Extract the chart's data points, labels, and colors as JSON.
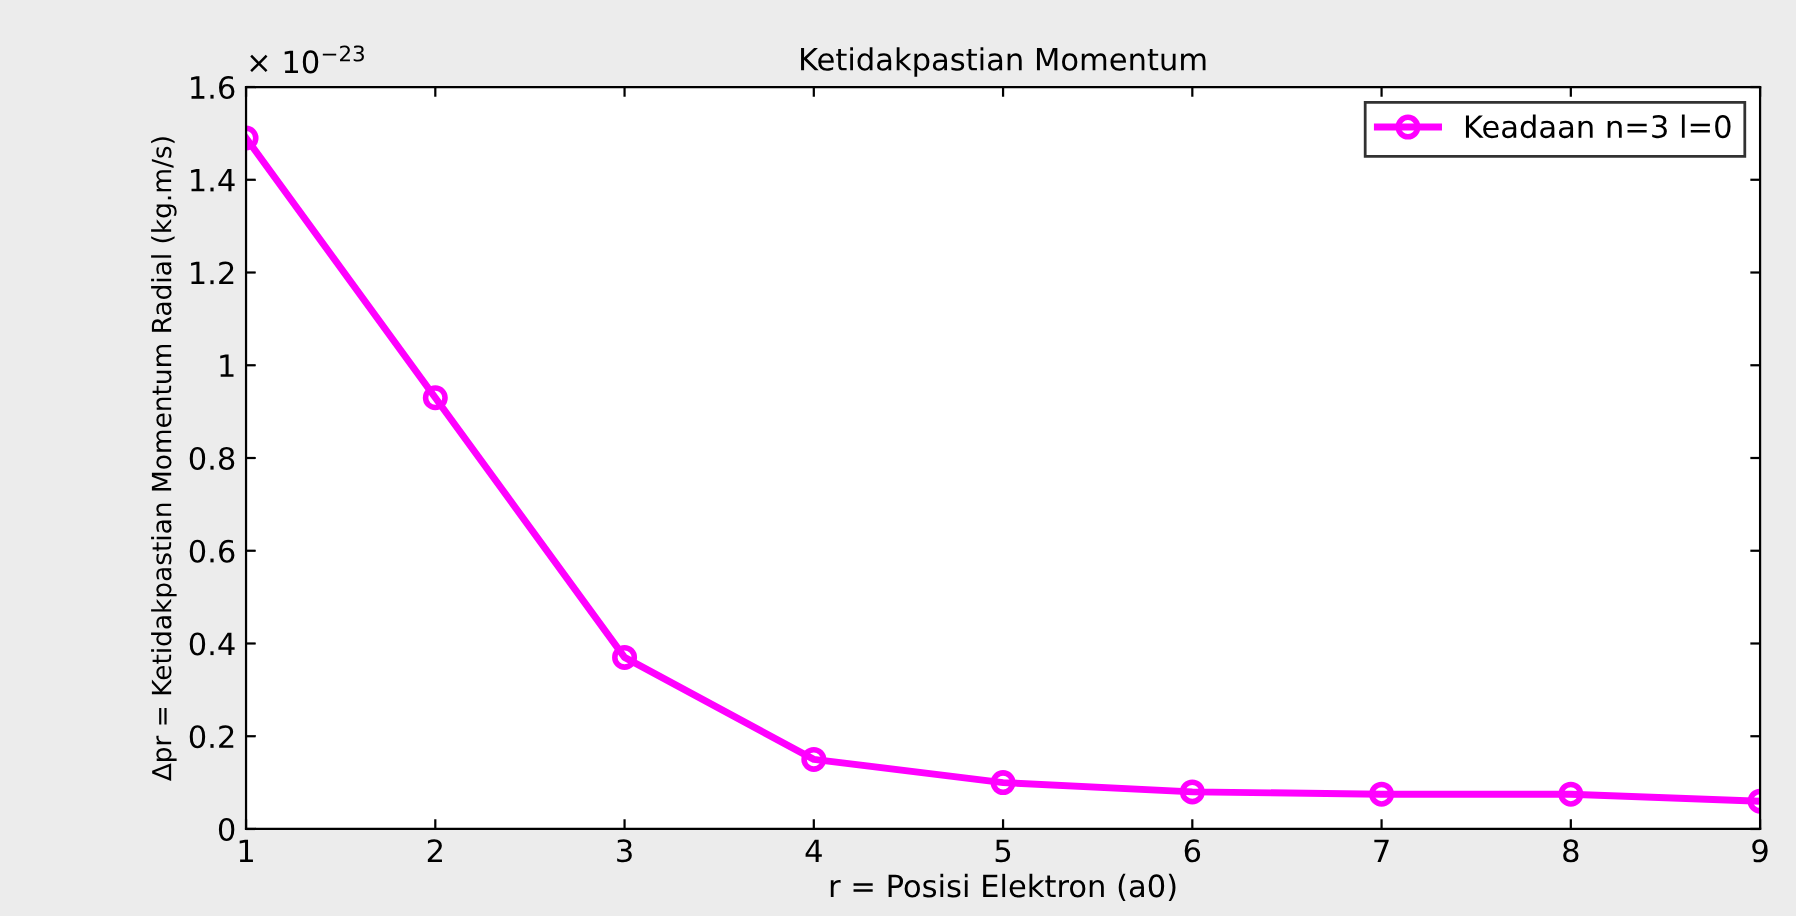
{
  "chart_data": {
    "type": "line",
    "title": "Ketidakpastian Momentum",
    "xlabel": "r = Posisi Elektron (a0)",
    "ylabel": "∆pr = Ketidakpastian Momentum Radial (kg.m/s)",
    "x": [
      1,
      2,
      3,
      4,
      5,
      6,
      7,
      8,
      9
    ],
    "series": [
      {
        "name": "Keadaan n=3 l=0",
        "color": "#ff00ff",
        "values": [
          1.49,
          0.93,
          0.37,
          0.15,
          0.1,
          0.08,
          0.075,
          0.075,
          0.06
        ]
      }
    ],
    "xlim": [
      1,
      9
    ],
    "xticks": [
      1,
      2,
      3,
      4,
      5,
      6,
      7,
      8,
      9
    ],
    "ylim": [
      0,
      1.6
    ],
    "yticks": [
      0,
      0.2,
      0.4,
      0.6,
      0.8,
      1,
      1.2,
      1.4,
      1.6
    ],
    "annotations": [
      "× 10$^{−23}$"
    ],
    "marker": "circle",
    "line_style": "solid",
    "legend": "top right",
    "grid": false
  }
}
